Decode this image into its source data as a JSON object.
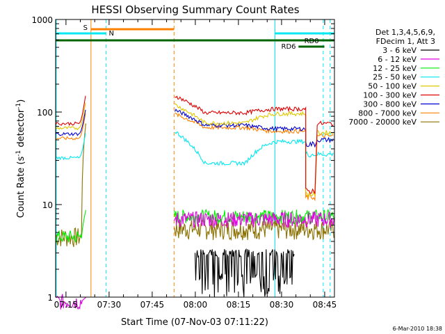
{
  "chart_data": {
    "type": "line",
    "title": "HESSI Observing Summary Count Rates",
    "xlabel": "Start Time (07-Nov-03 07:11:22)",
    "ylabel_main": "Count Rate (s",
    "ylabel_sup1": "-1",
    "ylabel_mid": " detector",
    "ylabel_sup2": "-1",
    "ylabel_end": ")",
    "y_scale": "log",
    "ylim": [
      1,
      1000
    ],
    "xlim_minutes": [
      0,
      97
    ],
    "x_ticks": [
      {
        "label": "07:15",
        "minute": 3.6
      },
      {
        "label": "07:30",
        "minute": 18.6
      },
      {
        "label": "07:45",
        "minute": 33.6
      },
      {
        "label": "08:00",
        "minute": 48.6
      },
      {
        "label": "08:15",
        "minute": 63.6
      },
      {
        "label": "08:30",
        "minute": 78.6
      },
      {
        "label": "08:45",
        "minute": 93.6
      }
    ],
    "y_ticks": [
      {
        "label": "1",
        "value": 1
      },
      {
        "label": "10",
        "value": 10
      },
      {
        "label": "100",
        "value": 100
      },
      {
        "label": "1000",
        "value": 1000
      }
    ],
    "legend_header": [
      "Det 1,3,4,5,6,9,",
      "FDecim 1, Att 3"
    ],
    "legend_placement": "right",
    "series": [
      {
        "name": "3 - 6 keV",
        "color": "#000000"
      },
      {
        "name": "6 - 12 keV",
        "color": "#e000e0"
      },
      {
        "name": "12 - 25 keV",
        "color": "#00ee00"
      },
      {
        "name": "25 - 50 keV",
        "color": "#00e8f0"
      },
      {
        "name": "50 - 100 keV",
        "color": "#e0c800"
      },
      {
        "name": "100 - 300 keV",
        "color": "#e00000"
      },
      {
        "name": "300 - 800 keV",
        "color": "#0000d0"
      },
      {
        "name": "800 - 7000 keV",
        "color": "#ff8000"
      },
      {
        "name": "7000 - 20000 keV",
        "color": "#8a7000"
      }
    ],
    "annotations": [
      {
        "label": "S",
        "color": "#ff8000"
      },
      {
        "label": "N",
        "color": "#00e8f0"
      },
      {
        "label": "RD0",
        "color": "#006400"
      },
      {
        "label": "RD6",
        "color": "#006400"
      }
    ],
    "footer_date": "6-Mar-2010 18:38"
  }
}
